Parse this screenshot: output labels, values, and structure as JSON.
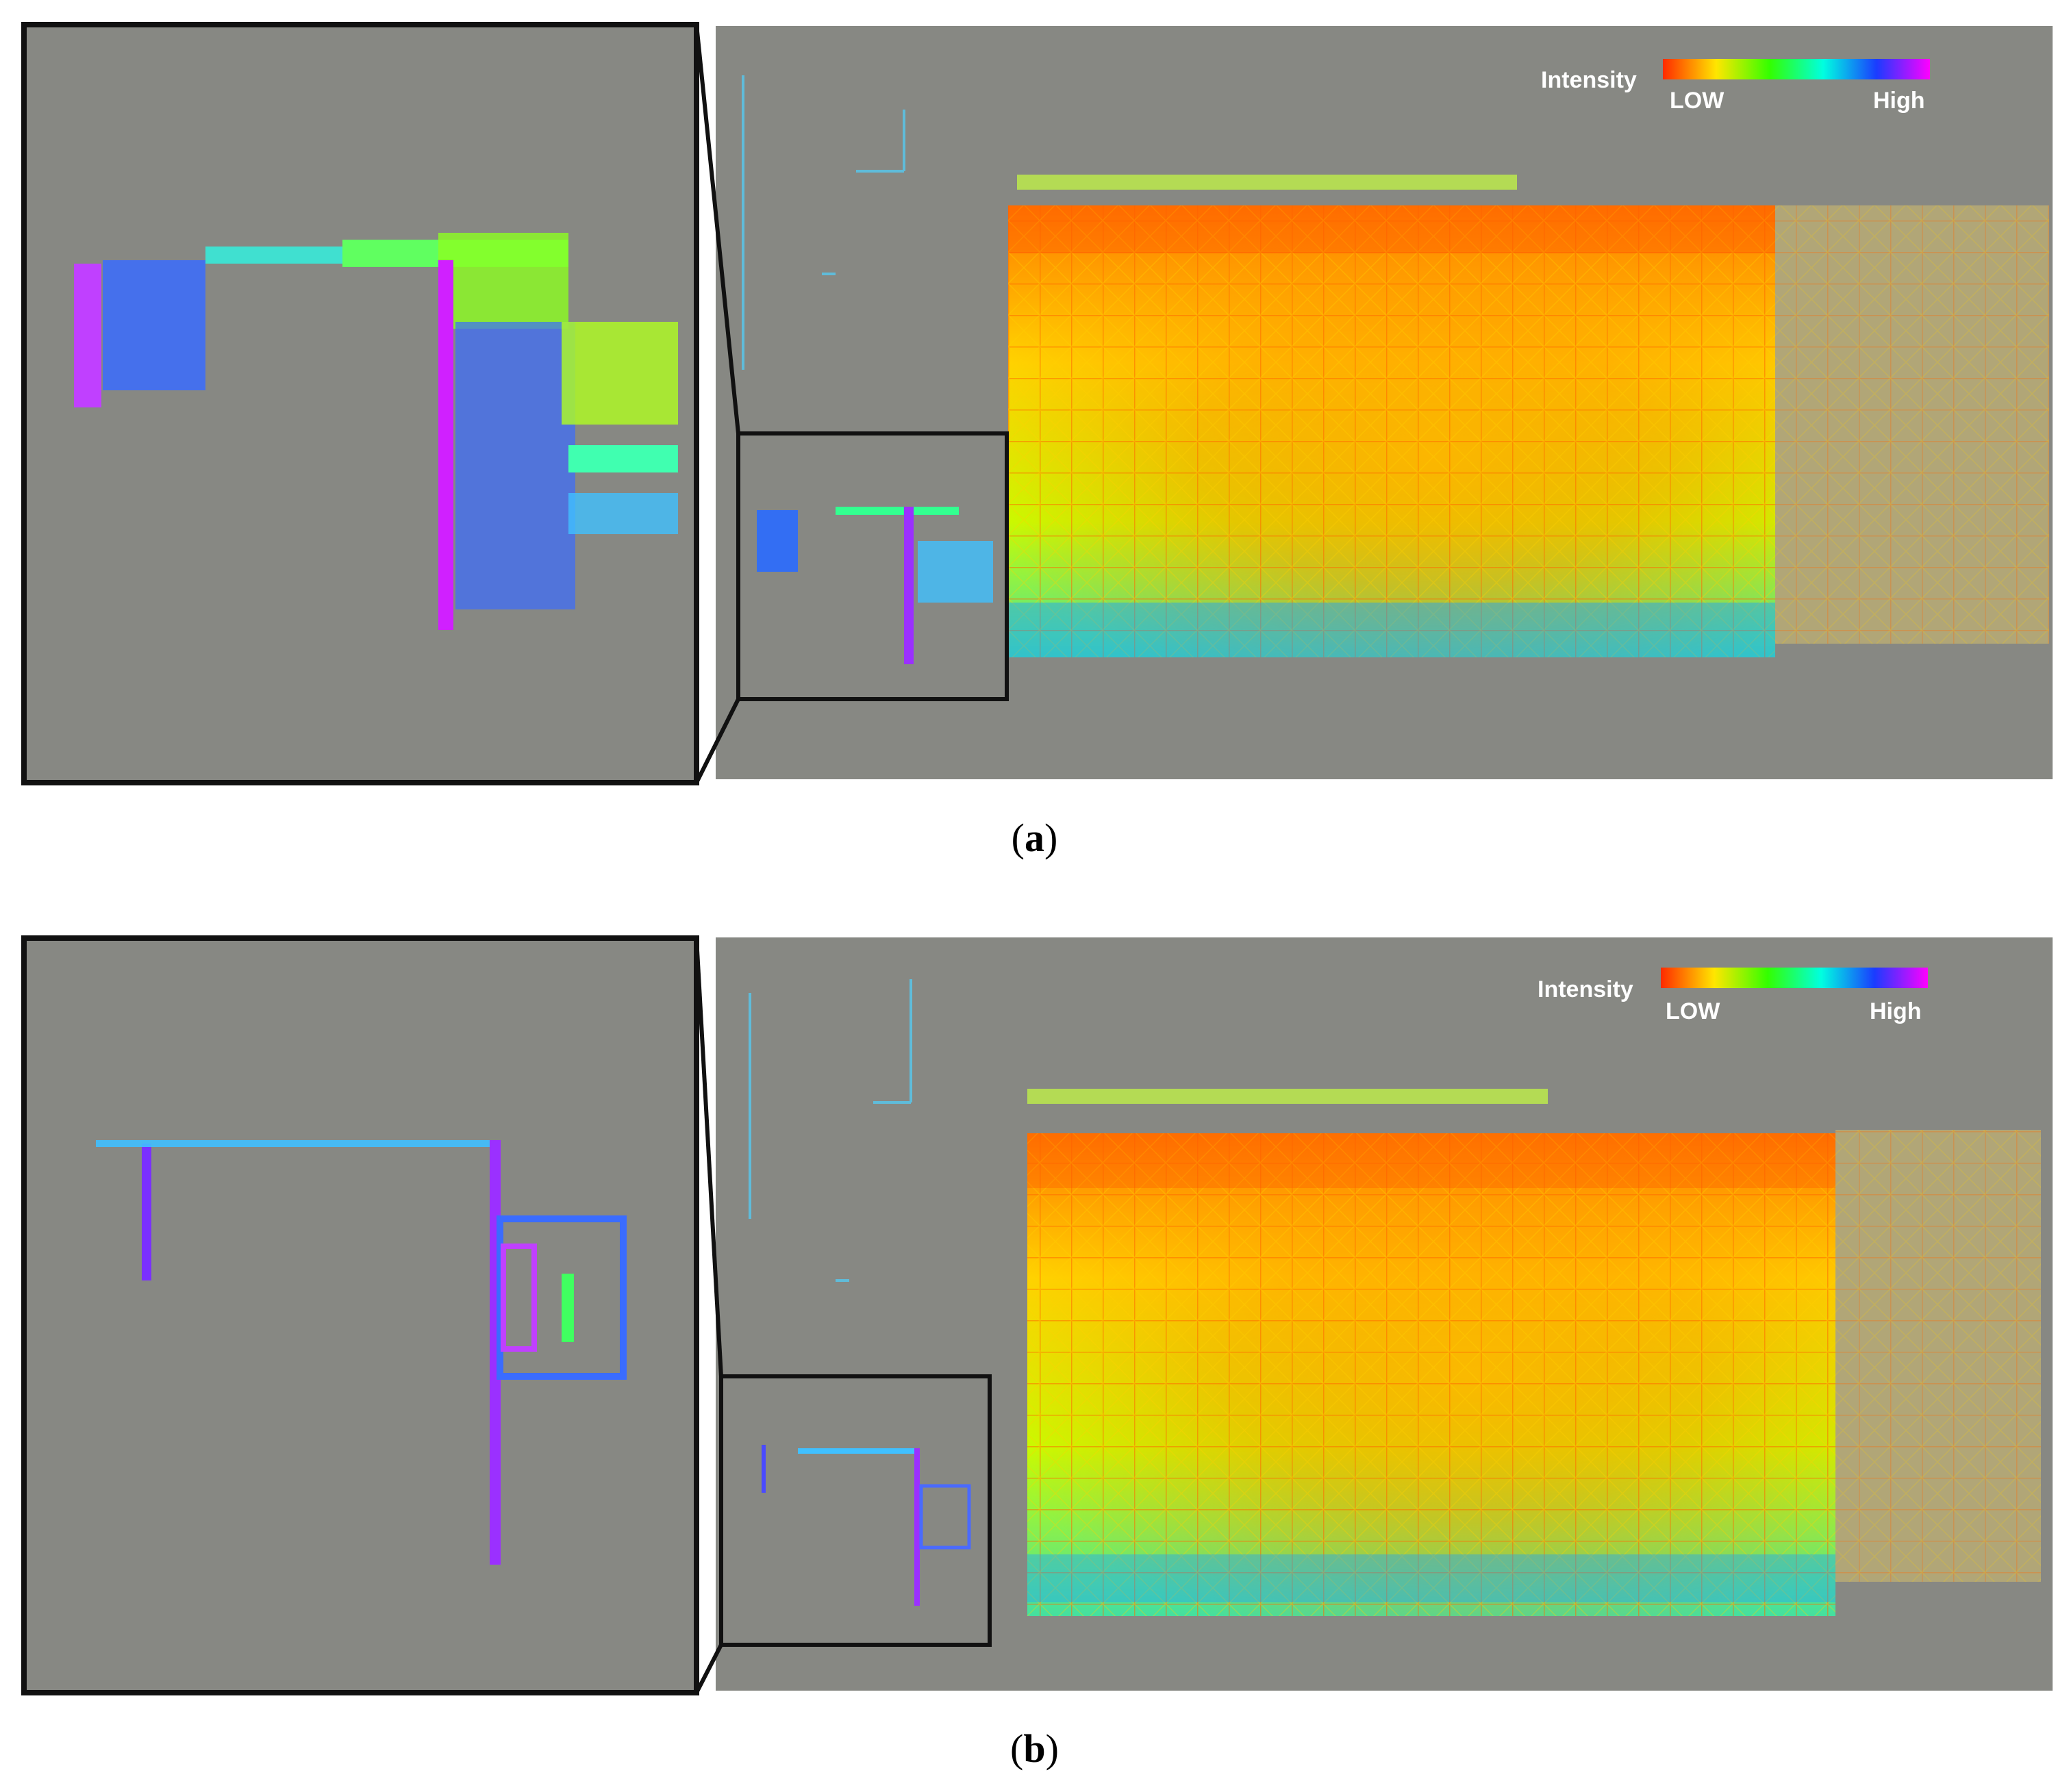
{
  "colors": {
    "background": "#878883",
    "frame": "#111111",
    "colormap": [
      "#ff2a00",
      "#ffe600",
      "#33ff00",
      "#00ffc8",
      "#00c8ff",
      "#1a3cff",
      "#ff00ff"
    ]
  },
  "panels": [
    {
      "id": "a",
      "caption_open": "(",
      "caption_letter": "a",
      "caption_close": ")",
      "legend": {
        "title": "Intensity",
        "low": "LOW",
        "high": "High"
      }
    },
    {
      "id": "b",
      "caption_open": "(",
      "caption_letter": "b",
      "caption_close": ")",
      "legend": {
        "title": "Intensity",
        "low": "LOW",
        "high": "High"
      }
    }
  ]
}
